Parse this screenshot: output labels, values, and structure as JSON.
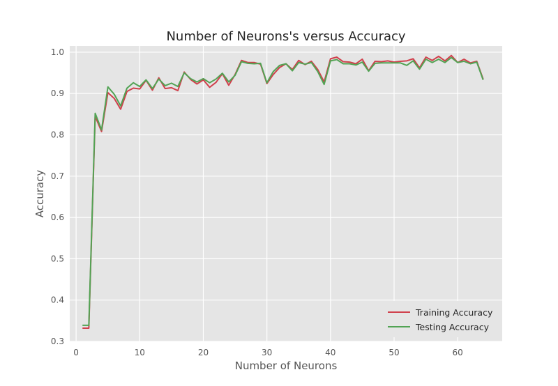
{
  "chart_data": {
    "type": "line",
    "title": "Number of Neurons's versus Accuracy",
    "xlabel": "Number of Neurons",
    "ylabel": "Accuracy",
    "xlim": [
      -1,
      67
    ],
    "ylim": [
      0.3,
      1.015
    ],
    "x_ticks": [
      0,
      10,
      20,
      30,
      40,
      50,
      60
    ],
    "y_ticks": [
      0.3,
      0.4,
      0.5,
      0.6,
      0.7,
      0.8,
      0.9,
      1.0
    ],
    "grid": true,
    "legend_position": "lower-right",
    "style": "ggplot",
    "x": [
      1,
      2,
      3,
      4,
      5,
      6,
      7,
      8,
      9,
      10,
      11,
      12,
      13,
      14,
      15,
      16,
      17,
      18,
      19,
      20,
      21,
      22,
      23,
      24,
      25,
      26,
      27,
      28,
      29,
      30,
      31,
      32,
      33,
      34,
      35,
      36,
      37,
      38,
      39,
      40,
      41,
      42,
      43,
      44,
      45,
      46,
      47,
      48,
      49,
      50,
      51,
      52,
      53,
      54,
      55,
      56,
      57,
      58,
      59,
      60,
      61,
      62,
      63,
      64
    ],
    "series": [
      {
        "name": "Training Accuracy",
        "color": "#d0404c",
        "values": [
          0.332,
          0.332,
          0.845,
          0.808,
          0.902,
          0.888,
          0.862,
          0.905,
          0.913,
          0.911,
          0.932,
          0.908,
          0.938,
          0.912,
          0.914,
          0.907,
          0.952,
          0.934,
          0.923,
          0.933,
          0.915,
          0.927,
          0.948,
          0.92,
          0.946,
          0.98,
          0.975,
          0.975,
          0.971,
          0.924,
          0.946,
          0.963,
          0.972,
          0.958,
          0.98,
          0.97,
          0.978,
          0.958,
          0.928,
          0.984,
          0.988,
          0.977,
          0.976,
          0.972,
          0.983,
          0.955,
          0.978,
          0.977,
          0.979,
          0.976,
          0.978,
          0.979,
          0.984,
          0.962,
          0.988,
          0.98,
          0.99,
          0.979,
          0.992,
          0.975,
          0.983,
          0.974,
          0.978,
          0.935
        ]
      },
      {
        "name": "Testing Accuracy",
        "color": "#52a354",
        "values": [
          0.339,
          0.339,
          0.852,
          0.812,
          0.916,
          0.898,
          0.87,
          0.913,
          0.926,
          0.917,
          0.933,
          0.912,
          0.935,
          0.919,
          0.925,
          0.917,
          0.95,
          0.936,
          0.928,
          0.936,
          0.926,
          0.935,
          0.949,
          0.928,
          0.944,
          0.977,
          0.973,
          0.972,
          0.973,
          0.926,
          0.953,
          0.968,
          0.972,
          0.955,
          0.975,
          0.971,
          0.975,
          0.953,
          0.922,
          0.979,
          0.982,
          0.972,
          0.972,
          0.969,
          0.976,
          0.954,
          0.973,
          0.974,
          0.974,
          0.974,
          0.974,
          0.968,
          0.979,
          0.959,
          0.983,
          0.975,
          0.983,
          0.975,
          0.987,
          0.975,
          0.978,
          0.972,
          0.976,
          0.933
        ]
      }
    ]
  }
}
